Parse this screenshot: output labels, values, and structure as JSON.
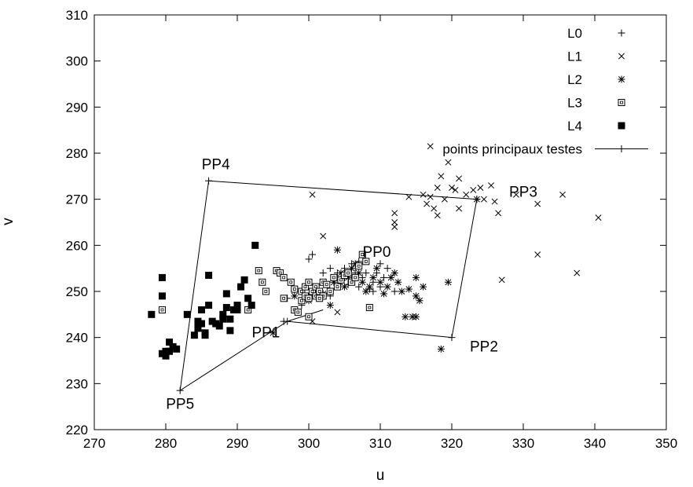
{
  "chart_data": {
    "type": "scatter",
    "title": "",
    "xlabel": "u",
    "ylabel": "v",
    "xlim": [
      270,
      350
    ],
    "ylim": [
      220,
      310
    ],
    "xticks": [
      "270",
      "280",
      "290",
      "300",
      "310",
      "320",
      "330",
      "340",
      "350"
    ],
    "yticks": [
      "220",
      "230",
      "240",
      "250",
      "260",
      "270",
      "280",
      "290",
      "300",
      "310"
    ],
    "grid": false,
    "legend_position": "top-right",
    "series": [
      {
        "name": "L0",
        "marker": "plus",
        "points": [
          [
            296.5,
            243.5
          ],
          [
            300,
            257
          ],
          [
            300.5,
            258
          ],
          [
            302,
            254
          ],
          [
            303,
            255
          ],
          [
            304,
            254
          ],
          [
            304.5,
            252
          ],
          [
            305,
            253
          ],
          [
            305,
            255
          ],
          [
            306,
            256
          ],
          [
            306,
            252.5
          ],
          [
            306.5,
            254
          ],
          [
            307,
            251
          ],
          [
            307.5,
            253
          ],
          [
            308,
            254
          ],
          [
            308.5,
            250.5
          ],
          [
            309,
            252
          ],
          [
            309.5,
            254
          ],
          [
            310,
            256
          ],
          [
            310,
            251
          ],
          [
            310.5,
            253
          ],
          [
            311,
            255
          ],
          [
            312,
            250
          ],
          [
            299,
            247
          ],
          [
            301,
            250.5
          ],
          [
            303,
            249
          ],
          [
            305.5,
            251.5
          ],
          [
            307,
            256.5
          ],
          [
            309,
            250
          ],
          [
            297,
            248.5
          ]
        ]
      },
      {
        "name": "L1",
        "marker": "x",
        "points": [
          [
            300.5,
            271
          ],
          [
            302,
            262
          ],
          [
            300.5,
            243.5
          ],
          [
            304,
            245.5
          ],
          [
            312,
            267
          ],
          [
            312,
            265
          ],
          [
            312,
            264
          ],
          [
            314,
            270.5
          ],
          [
            316,
            271
          ],
          [
            316.5,
            269
          ],
          [
            317,
            281.5
          ],
          [
            317,
            270.5
          ],
          [
            317.5,
            268
          ],
          [
            318,
            266.5
          ],
          [
            318,
            272.5
          ],
          [
            318.5,
            275
          ],
          [
            319,
            270
          ],
          [
            319.5,
            278
          ],
          [
            320,
            272.5
          ],
          [
            320.5,
            272
          ],
          [
            321,
            274.5
          ],
          [
            321,
            268
          ],
          [
            322,
            271
          ],
          [
            323,
            272
          ],
          [
            324,
            272.5
          ],
          [
            324.5,
            270
          ],
          [
            325.5,
            273
          ],
          [
            326,
            269.5
          ],
          [
            326.5,
            267
          ],
          [
            327,
            252.5
          ],
          [
            329,
            271
          ],
          [
            332,
            269
          ],
          [
            332,
            258
          ],
          [
            335.5,
            271
          ],
          [
            337.5,
            254
          ],
          [
            340.5,
            266
          ]
        ]
      },
      {
        "name": "L2",
        "marker": "star",
        "points": [
          [
            295,
            241
          ],
          [
            298,
            249
          ],
          [
            299,
            250
          ],
          [
            300,
            248
          ],
          [
            301,
            251
          ],
          [
            302,
            249.5
          ],
          [
            303,
            247
          ],
          [
            303.5,
            252
          ],
          [
            304,
            259
          ],
          [
            304.5,
            254
          ],
          [
            305,
            251
          ],
          [
            305.5,
            253
          ],
          [
            306,
            255
          ],
          [
            306.5,
            256
          ],
          [
            307,
            254
          ],
          [
            307.5,
            252
          ],
          [
            308,
            250
          ],
          [
            308.5,
            251
          ],
          [
            309,
            253
          ],
          [
            309.5,
            255
          ],
          [
            310,
            252
          ],
          [
            310.5,
            249.5
          ],
          [
            311,
            251
          ],
          [
            311.5,
            253
          ],
          [
            312,
            254
          ],
          [
            312.5,
            252
          ],
          [
            313,
            250
          ],
          [
            313.5,
            244.5
          ],
          [
            314,
            250.5
          ],
          [
            314.5,
            244.5
          ],
          [
            315,
            253
          ],
          [
            315,
            249
          ],
          [
            315,
            244.5
          ],
          [
            315.5,
            248
          ],
          [
            316,
            251
          ],
          [
            318.5,
            237.5
          ],
          [
            319.5,
            252
          ],
          [
            323.5,
            270
          ]
        ]
      },
      {
        "name": "L3",
        "marker": "square",
        "points": [
          [
            279.5,
            246
          ],
          [
            291.5,
            246
          ],
          [
            293,
            254.5
          ],
          [
            293.5,
            252
          ],
          [
            294,
            250
          ],
          [
            295.5,
            254.5
          ],
          [
            296,
            254
          ],
          [
            296.5,
            253
          ],
          [
            296.5,
            248.5
          ],
          [
            297.5,
            252
          ],
          [
            298,
            250.5
          ],
          [
            298,
            246
          ],
          [
            298.5,
            245.5
          ],
          [
            299,
            250
          ],
          [
            299,
            248
          ],
          [
            299.5,
            249
          ],
          [
            299.5,
            251
          ],
          [
            300,
            252
          ],
          [
            300,
            248.5
          ],
          [
            300,
            244.5
          ],
          [
            300.5,
            250
          ],
          [
            301,
            249
          ],
          [
            301,
            251
          ],
          [
            301.5,
            250
          ],
          [
            302,
            252
          ],
          [
            302,
            249
          ],
          [
            302.5,
            251.5
          ],
          [
            303,
            250
          ],
          [
            303.5,
            253
          ],
          [
            304,
            251
          ],
          [
            304.5,
            252.5
          ],
          [
            305,
            253.5
          ],
          [
            305.5,
            254
          ],
          [
            306,
            252
          ],
          [
            306.5,
            253
          ],
          [
            307,
            255.5
          ],
          [
            307.5,
            258
          ],
          [
            308,
            256.5
          ],
          [
            308.5,
            246.5
          ],
          [
            301.5,
            248.5
          ]
        ]
      },
      {
        "name": "L4",
        "marker": "filled-square",
        "points": [
          [
            278,
            245
          ],
          [
            279.5,
            236.5
          ],
          [
            279.5,
            249
          ],
          [
            279.5,
            253
          ],
          [
            280,
            236
          ],
          [
            280,
            237
          ],
          [
            280.5,
            237
          ],
          [
            280.5,
            239
          ],
          [
            281,
            238
          ],
          [
            281.5,
            237.5
          ],
          [
            283,
            245
          ],
          [
            284,
            240.5
          ],
          [
            284.5,
            242
          ],
          [
            284.5,
            243.5
          ],
          [
            285,
            246
          ],
          [
            285,
            243
          ],
          [
            285.5,
            241
          ],
          [
            285.5,
            240.5
          ],
          [
            286,
            247
          ],
          [
            286,
            253.5
          ],
          [
            286.5,
            243.5
          ],
          [
            287,
            243
          ],
          [
            287.5,
            242.5
          ],
          [
            288,
            244
          ],
          [
            288,
            245
          ],
          [
            288.5,
            246.5
          ],
          [
            288.5,
            249.5
          ],
          [
            289,
            241.5
          ],
          [
            289,
            244
          ],
          [
            289.5,
            246
          ],
          [
            290,
            247
          ],
          [
            290,
            246
          ],
          [
            290.5,
            251
          ],
          [
            291,
            252.5
          ],
          [
            291.5,
            248.5
          ],
          [
            292,
            247
          ],
          [
            292.5,
            260
          ]
        ]
      },
      {
        "name": "points principaux testes",
        "marker": "plus-line",
        "path_labels": [
          "PP1",
          "PP2",
          "PP3",
          "PP4",
          "PP5"
        ],
        "points": [
          [
            297,
            243.5
          ],
          [
            320,
            240
          ],
          [
            323.5,
            270
          ],
          [
            286,
            274
          ],
          [
            282,
            228.5
          ]
        ]
      }
    ],
    "annotations": [
      {
        "text": "PP0",
        "x": 309.5,
        "y": 257.5
      },
      {
        "text": "PP1",
        "x": 294,
        "y": 240
      },
      {
        "text": "PP2",
        "x": 324.5,
        "y": 237
      },
      {
        "text": "PP3",
        "x": 330,
        "y": 270.5
      },
      {
        "text": "PP4",
        "x": 287,
        "y": 276.5
      },
      {
        "text": "PP5",
        "x": 282,
        "y": 224.5
      }
    ],
    "pp_segments": [
      [
        0,
        4
      ],
      [
        4,
        3
      ],
      [
        3,
        2
      ],
      [
        2,
        1
      ],
      [
        1,
        0
      ]
    ],
    "pp_extra_segment": [
      [
        297,
        243.5
      ],
      [
        302,
        246
      ]
    ]
  }
}
